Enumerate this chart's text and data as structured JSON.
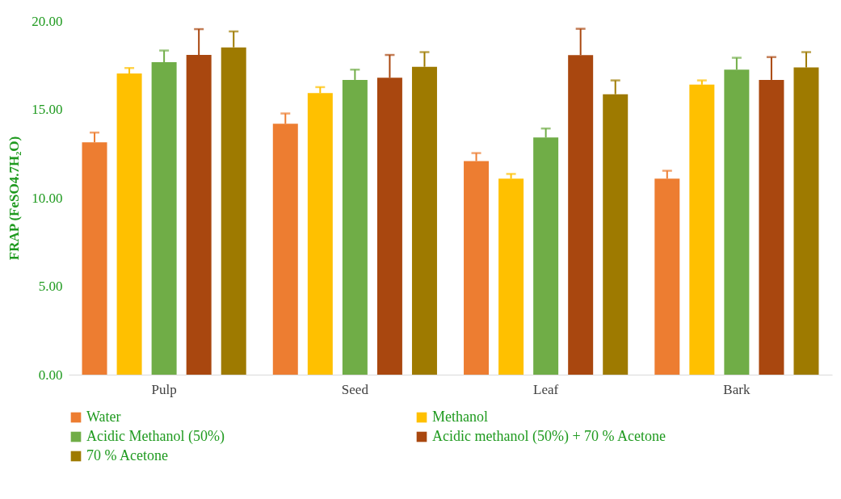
{
  "chart_data": {
    "type": "bar",
    "ylabel": "FRAP (FeSO4.7H₂O)",
    "categories": [
      "Pulp",
      "Seed",
      "Leaf",
      "Bark"
    ],
    "ylim": [
      0,
      20
    ],
    "yticks": [
      {
        "value": 0,
        "label": "0.00"
      },
      {
        "value": 5,
        "label": "5.00"
      },
      {
        "value": 10,
        "label": "10.00"
      },
      {
        "value": 15,
        "label": "15.00"
      },
      {
        "value": 20,
        "label": "20.00"
      }
    ],
    "legend": "bottom",
    "series": [
      {
        "name": "Water",
        "color": "#ed7d31",
        "values": [
          13.14,
          14.19,
          12.08,
          11.09
        ],
        "errors": [
          [
            13.14,
            13.69
          ],
          [
            14.19,
            14.77
          ],
          [
            12.08,
            12.53
          ],
          [
            11.09,
            11.53
          ]
        ]
      },
      {
        "name": "Methanol",
        "color": "#ffc000",
        "values": [
          17.03,
          15.92,
          11.09,
          16.4
        ],
        "errors": [
          [
            17.03,
            17.34
          ],
          [
            15.92,
            16.26
          ],
          [
            11.09,
            11.35
          ],
          [
            16.4,
            16.64
          ]
        ]
      },
      {
        "name": "Acidic Methanol (50%)",
        "color": "#70ad47",
        "values": [
          17.67,
          16.67,
          13.41,
          17.25
        ],
        "errors": [
          [
            17.67,
            18.33
          ],
          [
            16.67,
            17.25
          ],
          [
            13.41,
            13.92
          ],
          [
            17.25,
            17.92
          ]
        ]
      },
      {
        "name": "Acidic methanol (50%) + 70 % Acetone",
        "color": "#a9470f",
        "values": [
          18.08,
          16.79,
          18.07,
          16.67
        ],
        "errors": [
          [
            18.08,
            19.54
          ],
          [
            16.79,
            18.08
          ],
          [
            18.07,
            19.56
          ],
          [
            16.67,
            17.96
          ]
        ]
      },
      {
        "name": "70 % Acetone",
        "color": "#9e7a00",
        "values": [
          18.51,
          17.41,
          15.86,
          17.37
        ],
        "errors": [
          [
            18.51,
            19.41
          ],
          [
            17.41,
            18.24
          ],
          [
            15.86,
            16.64
          ],
          [
            17.37,
            18.24
          ]
        ]
      }
    ]
  }
}
